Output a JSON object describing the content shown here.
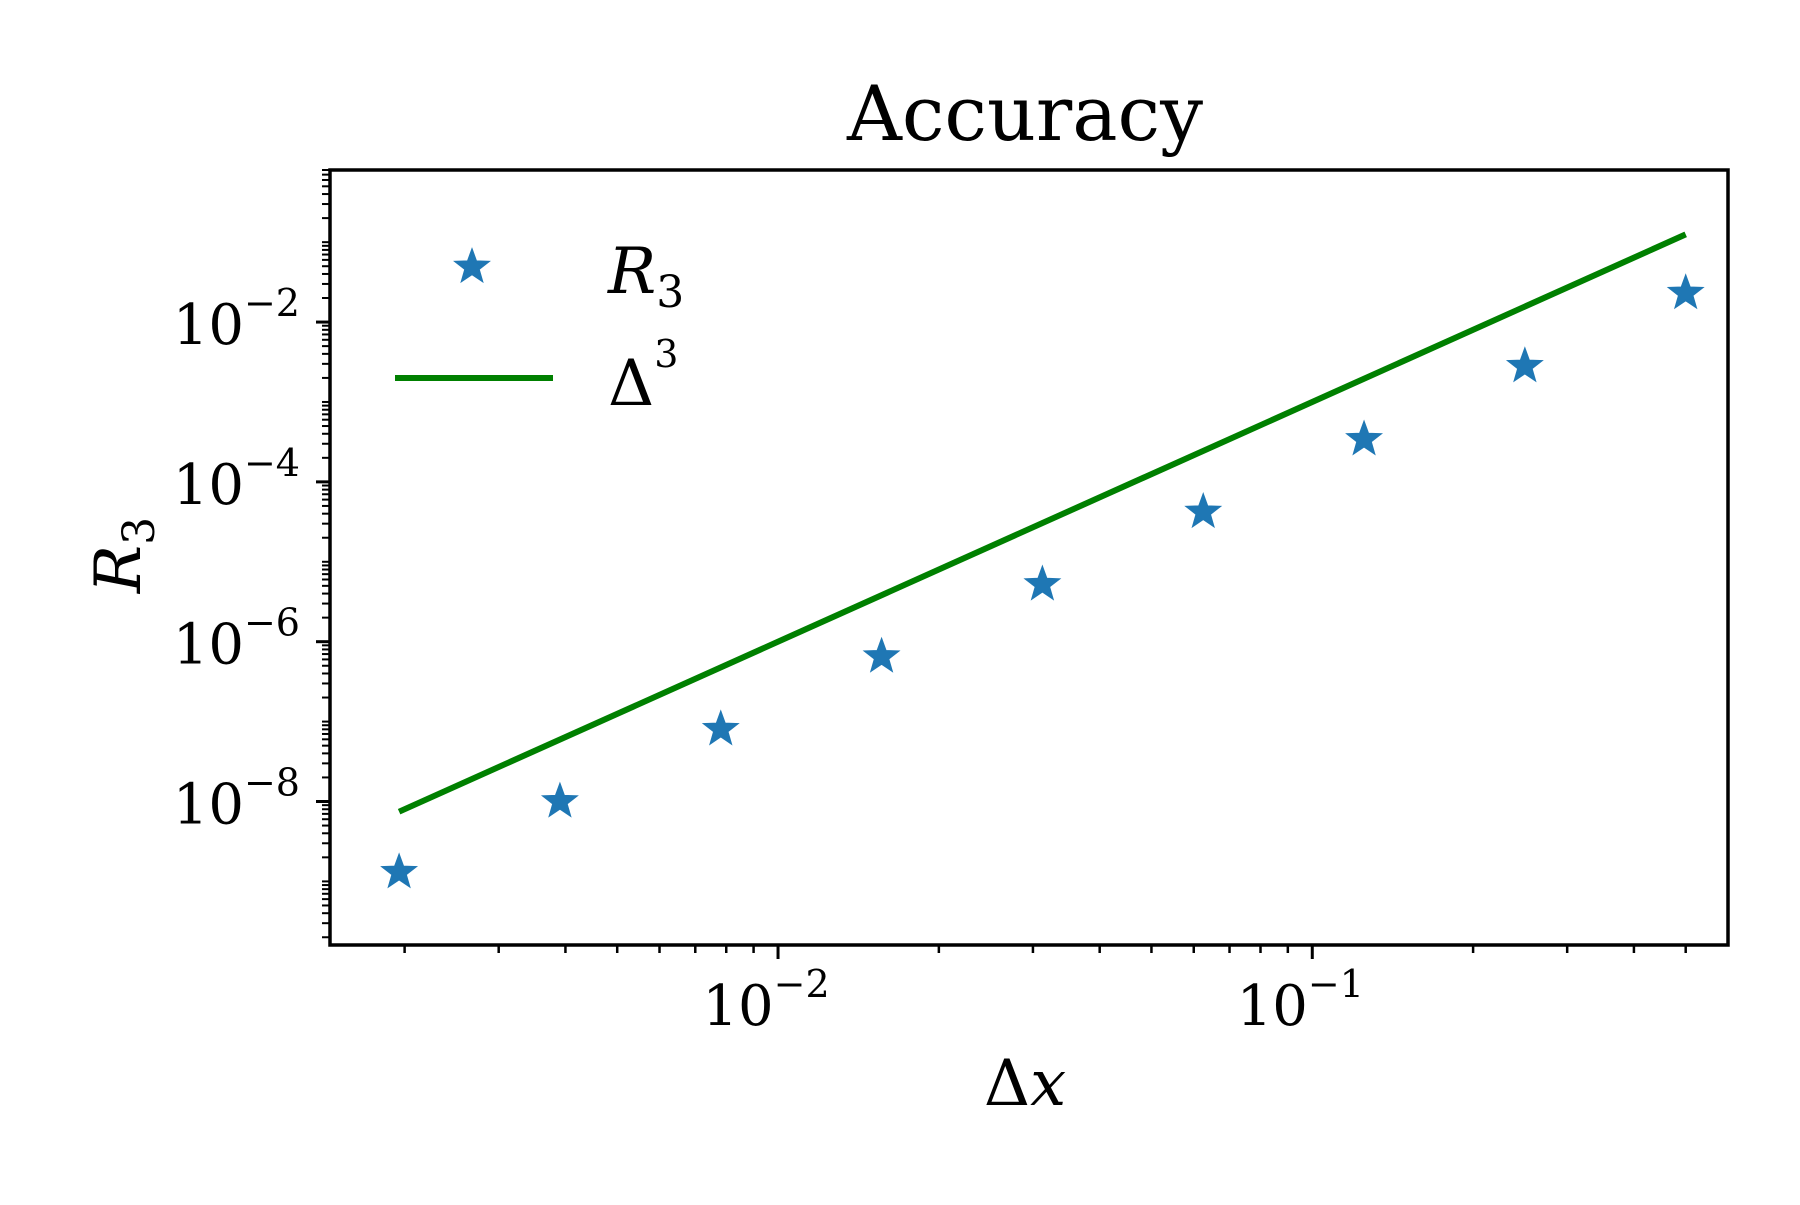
{
  "chart_data": {
    "type": "scatter",
    "title": "Accuracy",
    "xlabel": {
      "base": "Δ",
      "var": "x"
    },
    "ylabel": {
      "base": "R",
      "sub": "3"
    },
    "xscale": "log",
    "yscale": "log",
    "xlim": [
      0.00145,
      0.6
    ],
    "ylim": [
      1.6e-10,
      0.8
    ],
    "x_ticks": [
      {
        "value": 0.01,
        "base": "10",
        "exp": "−2"
      },
      {
        "value": 0.1,
        "base": "10",
        "exp": "−1"
      }
    ],
    "y_ticks": [
      {
        "value": 0.01,
        "base": "10",
        "exp": "−2"
      },
      {
        "value": 0.0001,
        "base": "10",
        "exp": "−4"
      },
      {
        "value": 1e-06,
        "base": "10",
        "exp": "−6"
      },
      {
        "value": 1e-08,
        "base": "10",
        "exp": "−8"
      }
    ],
    "grid": false,
    "legend_position": "top-left",
    "series": [
      {
        "name": {
          "base": "R",
          "sub": "3"
        },
        "kind": "scatter",
        "marker": "star",
        "color": "#1f77b4",
        "x": [
          0.001953,
          0.003906,
          0.007813,
          0.015625,
          0.03125,
          0.0625,
          0.125,
          0.25,
          0.5
        ],
        "y": [
          1.3e-09,
          1e-08,
          8e-08,
          6.5e-07,
          5.2e-06,
          4.2e-05,
          0.00034,
          0.0028,
          0.023
        ]
      },
      {
        "name": {
          "base": "Δ",
          "sup": "3"
        },
        "kind": "line",
        "color": "#008000",
        "x": [
          0.001953,
          0.5
        ],
        "y": [
          7.45e-09,
          0.125
        ]
      }
    ]
  }
}
